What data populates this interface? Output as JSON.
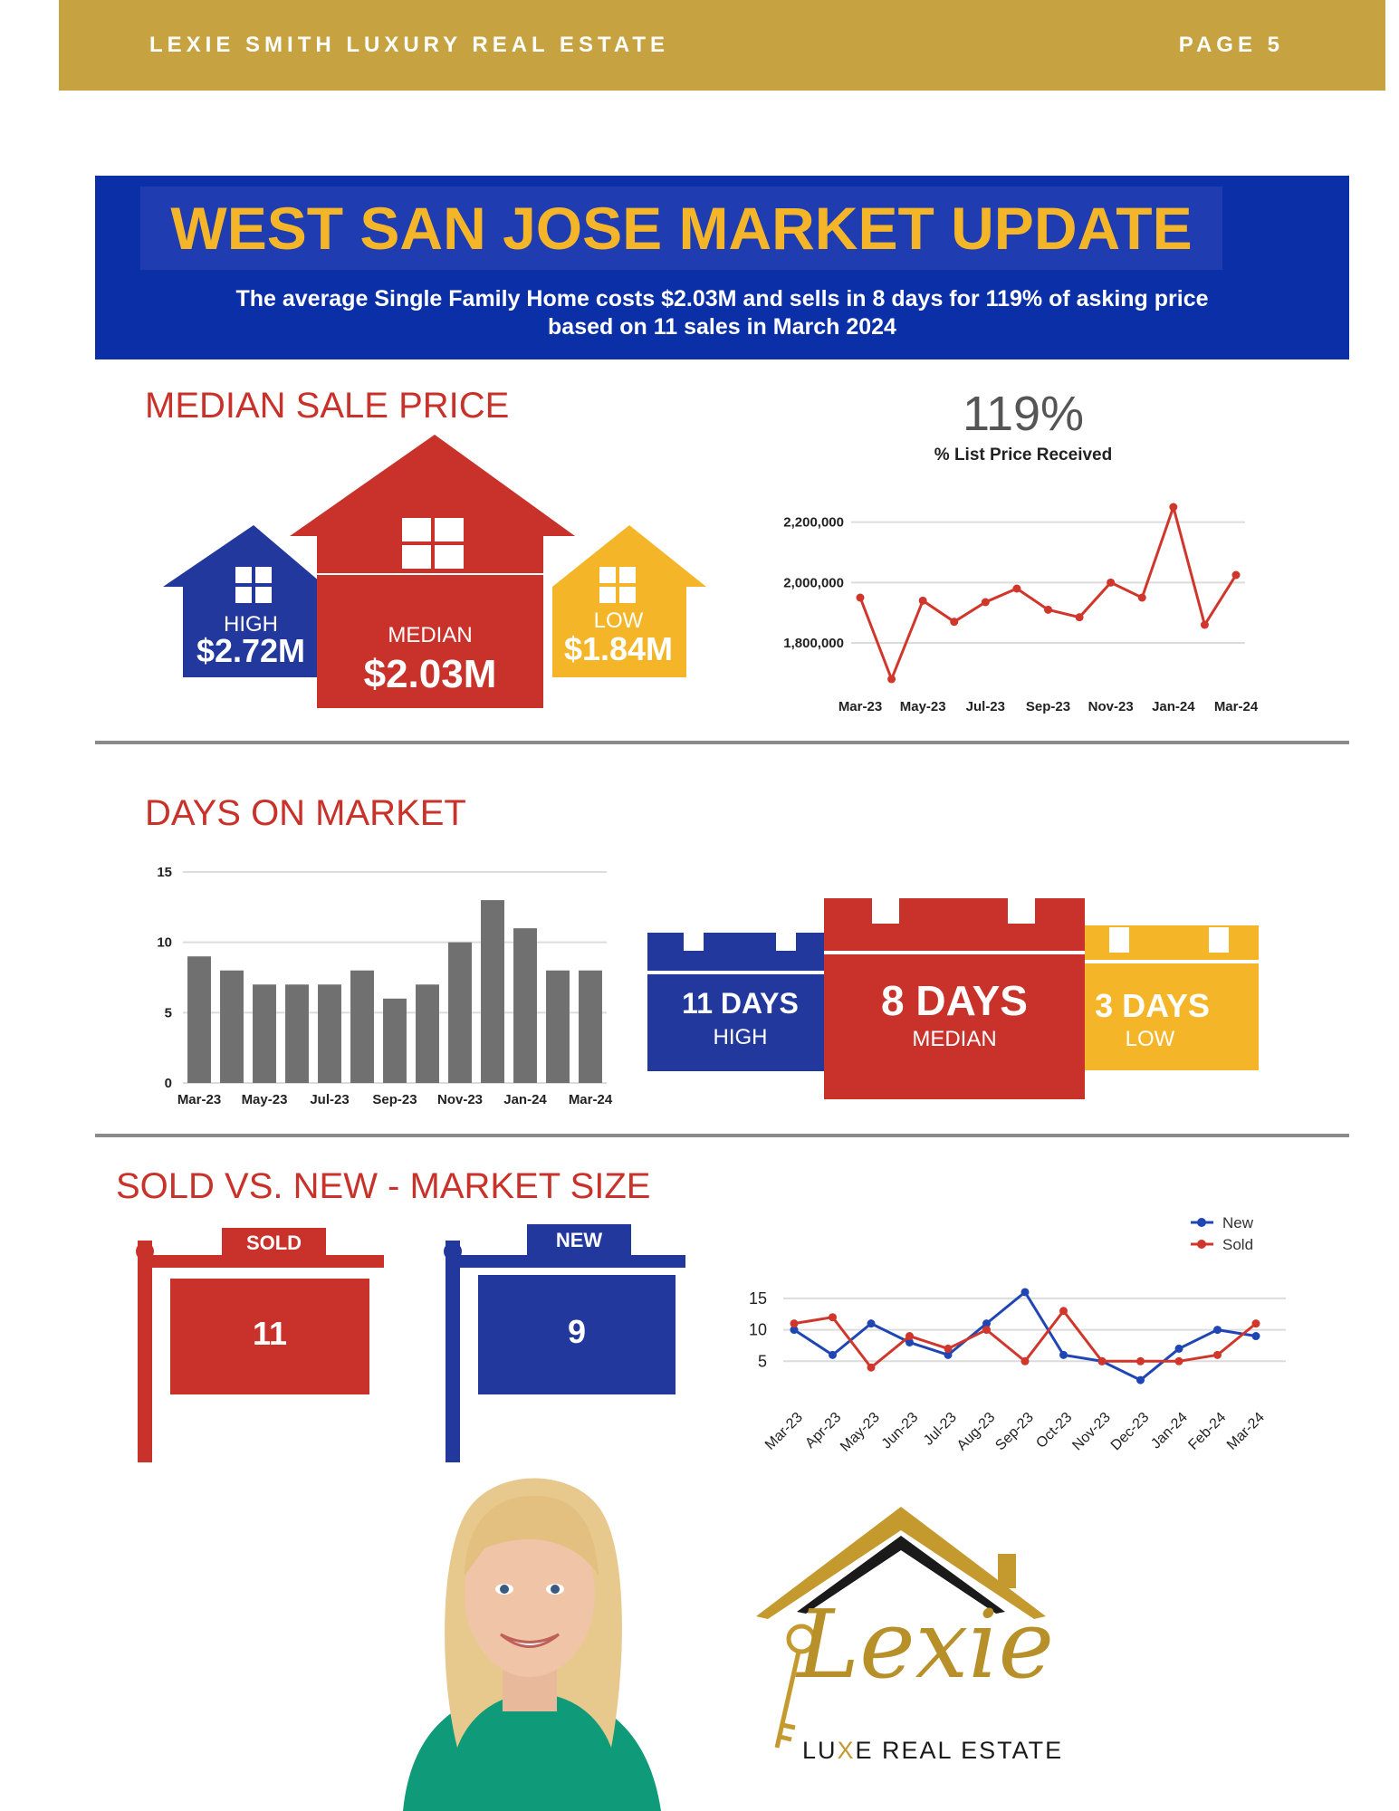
{
  "header": {
    "brand": "LEXIE SMITH LUXURY REAL ESTATE",
    "page": "PAGE 5"
  },
  "banner": {
    "title": "WEST SAN JOSE MARKET UPDATE",
    "subtitle_line1": "The average Single Family Home costs $2.03M and sells in 8 days for 119% of asking price",
    "subtitle_line2": "based on 11 sales in March 2024"
  },
  "colors": {
    "gold": "#c6a340",
    "blue": "#22389c",
    "red": "#c8322a",
    "yellow": "#f4b628",
    "gray": "#707070"
  },
  "median_sale_price": {
    "title": "MEDIAN SALE PRICE",
    "high_label": "HIGH",
    "high_value": "$2.72M",
    "median_label": "MEDIAN",
    "median_value": "$2.03M",
    "low_label": "LOW",
    "low_value": "$1.84M"
  },
  "list_price_received": {
    "value": "119%",
    "label": "% List Price Received"
  },
  "days_on_market": {
    "title": "DAYS ON MARKET",
    "high_value": "11 DAYS",
    "high_label": "HIGH",
    "median_value": "8 DAYS",
    "median_label": "MEDIAN",
    "low_value": "3 DAYS",
    "low_label": "LOW"
  },
  "sold_vs_new": {
    "title": "SOLD VS. NEW - MARKET SIZE",
    "sold_label": "SOLD",
    "sold_value": "11",
    "new_label": "NEW",
    "new_value": "9"
  },
  "logo": {
    "name": "Lexie",
    "tagline_prefix": "LU",
    "tagline_x": "X",
    "tagline_rest": "E REAL ESTATE"
  },
  "chart_data": [
    {
      "type": "line",
      "id": "median-price-line",
      "x": [
        "Mar-23",
        "Apr-23",
        "May-23",
        "Jun-23",
        "Jul-23",
        "Aug-23",
        "Sep-23",
        "Oct-23",
        "Nov-23",
        "Dec-23",
        "Jan-24",
        "Feb-24",
        "Mar-24"
      ],
      "x_tick_labels": [
        "Mar-23",
        "May-23",
        "Jul-23",
        "Sep-23",
        "Nov-23",
        "Jan-24",
        "Mar-24"
      ],
      "y_ticks": [
        "2,200,000",
        "2,000,000",
        "1,800,000"
      ],
      "values": [
        1950000,
        1680000,
        1940000,
        1870000,
        1935000,
        1980000,
        1910000,
        1885000,
        2000000,
        1950000,
        2250000,
        1860000,
        2025000
      ],
      "ylim": [
        1650000,
        2250000
      ],
      "color": "#d0362b",
      "grid": true
    },
    {
      "type": "bar",
      "id": "days-on-market-bar",
      "categories": [
        "Mar-23",
        "Apr-23",
        "May-23",
        "Jun-23",
        "Jul-23",
        "Aug-23",
        "Sep-23",
        "Oct-23",
        "Nov-23",
        "Dec-23",
        "Jan-24",
        "Feb-24",
        "Mar-24"
      ],
      "x_tick_labels": [
        "Mar-23",
        "May-23",
        "Jul-23",
        "Sep-23",
        "Nov-23",
        "Jan-24",
        "Mar-24"
      ],
      "y_ticks": [
        "15",
        "10",
        "5",
        "0"
      ],
      "values": [
        9,
        8,
        7,
        7,
        7,
        8,
        6,
        7,
        10,
        13,
        11,
        8,
        8
      ],
      "ylim": [
        0,
        15
      ],
      "color": "#707070",
      "grid": true
    },
    {
      "type": "line",
      "id": "sold-vs-new-line",
      "x": [
        "Mar-23",
        "Apr-23",
        "May-23",
        "Jun-23",
        "Jul-23",
        "Aug-23",
        "Sep-23",
        "Oct-23",
        "Nov-23",
        "Dec-23",
        "Jan-24",
        "Feb-24",
        "Mar-24"
      ],
      "y_ticks": [
        "15",
        "10",
        "5"
      ],
      "ylim": [
        0,
        17
      ],
      "legend_position": "top-right",
      "series": [
        {
          "name": "New",
          "color": "#1f46b4",
          "values": [
            10,
            6,
            11,
            8,
            6,
            11,
            16,
            6,
            5,
            2,
            7,
            10,
            9
          ]
        },
        {
          "name": "Sold",
          "color": "#d0362b",
          "values": [
            11,
            12,
            4,
            9,
            7,
            10,
            5,
            13,
            5,
            5,
            5,
            6,
            11
          ]
        }
      ],
      "grid": true
    }
  ]
}
